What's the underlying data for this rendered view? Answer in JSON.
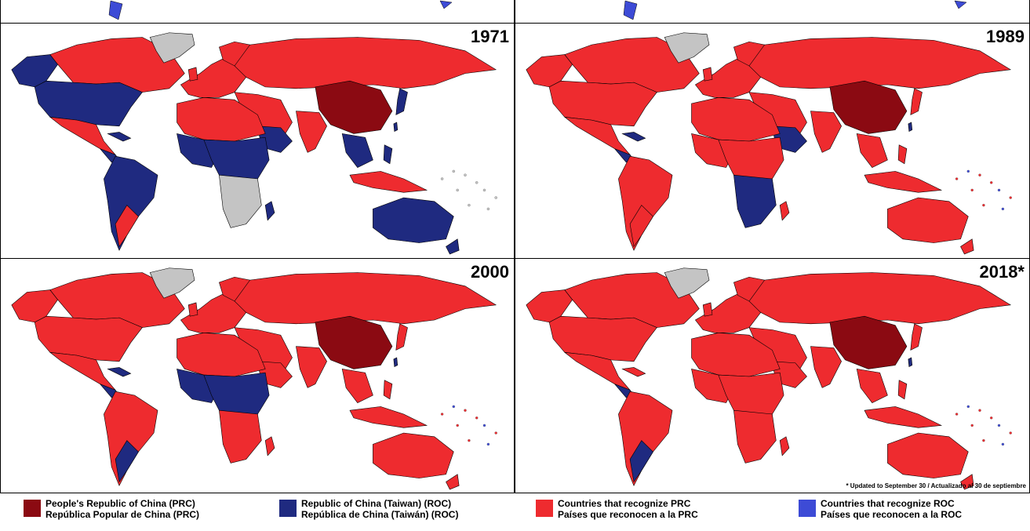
{
  "panels": [
    {
      "year": "1971"
    },
    {
      "year": "1989"
    },
    {
      "year": "2000"
    },
    {
      "year": "2018*",
      "footnote": "* Updated to September 30 / Actualizado al 30 de septiembre"
    }
  ],
  "colors": {
    "prc": "#8b0a12",
    "roc": "#1f2a80",
    "recognize_prc": "#ee2b2f",
    "recognize_roc": "#3d4bd6",
    "none": "#c4c4c4",
    "border": "#000000"
  },
  "legend": [
    {
      "color": "#8b0a12",
      "line1": "People's Republic of China (PRC)",
      "line2": "República Popular de China (PRC)"
    },
    {
      "color": "#1f2a80",
      "line1": "Republic of China (Taiwan) (ROC)",
      "line2": "República de China (Taiwán) (ROC)"
    },
    {
      "color": "#ee2b2f",
      "line1": "Countries that recognize PRC",
      "line2": "Países que reconocen a la PRC"
    },
    {
      "color": "#3d4bd6",
      "line1": "Countries that recognize ROC",
      "line2": "Países que reconocen a la ROC"
    }
  ]
}
